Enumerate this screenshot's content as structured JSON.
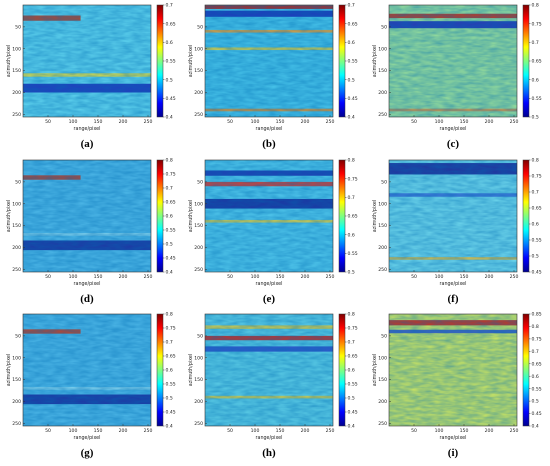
{
  "figure": {
    "panels": [
      {
        "letter": "(a)",
        "title_label": "azimuth/pixel",
        "x_label": "range/pixel",
        "x_ticks": [
          "50",
          "100",
          "150",
          "200",
          "250"
        ],
        "y_ticks": [
          "50",
          "100",
          "150",
          "200",
          "250"
        ],
        "cb_ticks": [
          "0.7",
          "0.65",
          "0.6",
          "0.55",
          "0.5",
          "0.45",
          "0.4"
        ],
        "base_color": "#5fd3ee",
        "bands": [
          {
            "y": 30,
            "w": 12,
            "c": "#b43a20",
            "partial": true
          },
          {
            "y": 160,
            "w": 8,
            "c": "#e6e040"
          },
          {
            "y": 190,
            "w": 20,
            "c": "#1b2db8"
          }
        ]
      },
      {
        "letter": "(b)",
        "title_label": "azimuth/pixel",
        "x_label": "range/pixel",
        "x_ticks": [
          "50",
          "100",
          "150",
          "200",
          "250"
        ],
        "y_ticks": [
          "50",
          "100",
          "150",
          "200",
          "250"
        ],
        "cb_ticks": [
          "0.7",
          "0.65",
          "0.6",
          "0.55",
          "0.5",
          "0.45",
          "0.4"
        ],
        "base_color": "#48c4ea",
        "bands": [
          {
            "y": 5,
            "w": 8,
            "c": "#b01c14"
          },
          {
            "y": 20,
            "w": 14,
            "c": "#1a2cb6"
          },
          {
            "y": 60,
            "w": 6,
            "c": "#f0a030"
          },
          {
            "y": 100,
            "w": 6,
            "c": "#e0d040"
          },
          {
            "y": 240,
            "w": 6,
            "c": "#e09030"
          }
        ]
      },
      {
        "letter": "(c)",
        "title_label": "azimuth/pixel",
        "x_label": "range/pixel",
        "x_ticks": [
          "50",
          "100",
          "150",
          "200",
          "250"
        ],
        "y_ticks": [
          "50",
          "100",
          "150",
          "200",
          "250"
        ],
        "cb_ticks": [
          "0.8",
          "0.75",
          "0.7",
          "0.65",
          "0.6",
          "0.55",
          "0.5"
        ],
        "base_color": "#9adf9a",
        "bands": [
          {
            "y": 25,
            "w": 10,
            "c": "#c02a18"
          },
          {
            "y": 45,
            "w": 16,
            "c": "#1c2ab6"
          },
          {
            "y": 240,
            "w": 6,
            "c": "#d09048"
          }
        ]
      },
      {
        "letter": "(d)",
        "title_label": "azimuth/pixel",
        "x_label": "range/pixel",
        "x_ticks": [
          "50",
          "100",
          "150",
          "200",
          "250"
        ],
        "y_ticks": [
          "50",
          "100",
          "150",
          "200",
          "250"
        ],
        "cb_ticks": [
          "0.8",
          "0.75",
          "0.7",
          "0.65",
          "0.6",
          "0.55",
          "0.5",
          "0.45",
          "0.4"
        ],
        "base_color": "#4eb8e8",
        "bands": [
          {
            "y": 40,
            "w": 10,
            "c": "#c03a20",
            "partial": true
          },
          {
            "y": 170,
            "w": 6,
            "c": "#8ad7f0"
          },
          {
            "y": 195,
            "w": 22,
            "c": "#1a2a9c"
          }
        ]
      },
      {
        "letter": "(e)",
        "title_label": "azimuth/pixel",
        "x_label": "range/pixel",
        "x_ticks": [
          "50",
          "100",
          "150",
          "200",
          "250"
        ],
        "y_ticks": [
          "50",
          "100",
          "150",
          "200",
          "250"
        ],
        "cb_ticks": [
          "0.8",
          "0.75",
          "0.7",
          "0.65",
          "0.6",
          "0.55",
          "0.5"
        ],
        "base_color": "#52c8ec",
        "bands": [
          {
            "y": 30,
            "w": 12,
            "c": "#1a2fae"
          },
          {
            "y": 55,
            "w": 10,
            "c": "#d8342a"
          },
          {
            "y": 100,
            "w": 22,
            "c": "#16259a"
          },
          {
            "y": 140,
            "w": 6,
            "c": "#e6d040"
          }
        ]
      },
      {
        "letter": "(f)",
        "title_label": "azimuth/pixel",
        "x_label": "range/pixel",
        "x_ticks": [
          "50",
          "100",
          "150",
          "200",
          "250"
        ],
        "y_ticks": [
          "50",
          "100",
          "150",
          "200",
          "250"
        ],
        "cb_ticks": [
          "0.8",
          "0.75",
          "0.7",
          "0.65",
          "0.6",
          "0.55",
          "0.5",
          "0.45"
        ],
        "base_color": "#6fd7ec",
        "bands": [
          {
            "y": 20,
            "w": 26,
            "c": "#1a2496"
          },
          {
            "y": 80,
            "w": 8,
            "c": "#3b6fd8"
          },
          {
            "y": 225,
            "w": 6,
            "c": "#e6c040"
          }
        ]
      },
      {
        "letter": "(g)",
        "title_label": "azimuth/pixel",
        "x_label": "range/pixel",
        "x_ticks": [
          "50",
          "100",
          "150",
          "200",
          "250"
        ],
        "y_ticks": [
          "50",
          "100",
          "150",
          "200",
          "250"
        ],
        "cb_ticks": [
          "0.8",
          "0.75",
          "0.7",
          "0.65",
          "0.6",
          "0.55",
          "0.5",
          "0.45",
          "0.4"
        ],
        "base_color": "#4eb8e8",
        "bands": [
          {
            "y": 40,
            "w": 10,
            "c": "#c03a20",
            "partial": true
          },
          {
            "y": 170,
            "w": 6,
            "c": "#8ad7f0"
          },
          {
            "y": 195,
            "w": 22,
            "c": "#1a2a9c"
          }
        ]
      },
      {
        "letter": "(h)",
        "title_label": "azimuth/pixel",
        "x_label": "range/pixel",
        "x_ticks": [
          "50",
          "100",
          "150",
          "200",
          "250"
        ],
        "y_ticks": [
          "50",
          "100",
          "150",
          "200",
          "250"
        ],
        "cb_ticks": [
          "0.8",
          "0.75",
          "0.7",
          "0.65",
          "0.6",
          "0.55",
          "0.5",
          "0.45",
          "0.4"
        ],
        "base_color": "#5ccde6",
        "bands": [
          {
            "y": 30,
            "w": 8,
            "c": "#e6d23c"
          },
          {
            "y": 55,
            "w": 10,
            "c": "#c8221a"
          },
          {
            "y": 80,
            "w": 12,
            "c": "#2a4cc8"
          },
          {
            "y": 190,
            "w": 6,
            "c": "#e0d040"
          }
        ]
      },
      {
        "letter": "(i)",
        "title_label": "azimuth/pixel",
        "x_label": "range/pixel",
        "x_ticks": [
          "50",
          "100",
          "150",
          "200",
          "250"
        ],
        "y_ticks": [
          "50",
          "100",
          "150",
          "200",
          "250"
        ],
        "cb_ticks": [
          "0.85",
          "0.8",
          "0.75",
          "0.7",
          "0.65",
          "0.6",
          "0.55",
          "0.5",
          "0.45",
          "0.4"
        ],
        "base_color": "#cfe760",
        "bands": [
          {
            "y": 20,
            "w": 12,
            "c": "#c8201a"
          },
          {
            "y": 40,
            "w": 8,
            "c": "#2f56c8"
          }
        ]
      }
    ]
  },
  "chart_data": {
    "type": "heatmap",
    "description_of_axes": "range/pixel vs azimuth/pixel, 0-256 pixels each",
    "panels": [
      "(a)",
      "(b)",
      "(c)",
      "(d)",
      "(e)",
      "(f)",
      "(g)",
      "(h)",
      "(i)"
    ],
    "xlim": [
      0,
      256
    ],
    "ylim": [
      0,
      256
    ],
    "colormap": "jet"
  }
}
